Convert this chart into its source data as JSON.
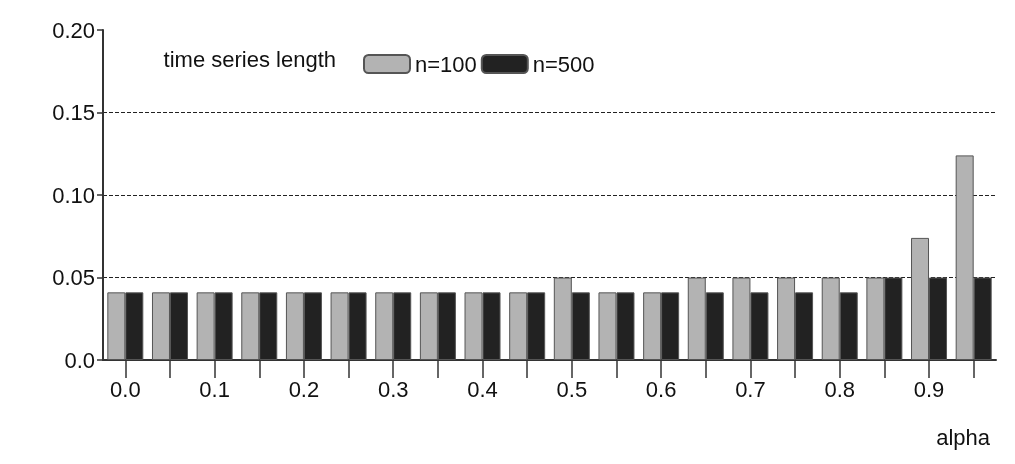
{
  "chart_data": {
    "type": "bar",
    "xlabel": "alpha",
    "legend_title": "time series length",
    "categories": [
      "0.0",
      null,
      "0.1",
      null,
      "0.2",
      null,
      "0.3",
      null,
      "0.4",
      null,
      "0.5",
      null,
      "0.6",
      null,
      "0.7",
      null,
      "0.8",
      null,
      "0.9",
      null
    ],
    "series": [
      {
        "name": "n=100",
        "color": "#b3b3b3",
        "values": [
          0.041,
          0.041,
          0.041,
          0.041,
          0.041,
          0.041,
          0.041,
          0.041,
          0.041,
          0.041,
          0.05,
          0.041,
          0.041,
          0.05,
          0.05,
          0.05,
          0.05,
          0.05,
          0.074,
          0.124
        ]
      },
      {
        "name": "n=500",
        "color": "#222222",
        "values": [
          0.041,
          0.041,
          0.041,
          0.041,
          0.041,
          0.041,
          0.041,
          0.041,
          0.041,
          0.041,
          0.041,
          0.041,
          0.041,
          0.041,
          0.041,
          0.041,
          0.041,
          0.05,
          0.05,
          0.05
        ]
      }
    ],
    "ylim": [
      0,
      0.2
    ],
    "yticks": [
      {
        "value": 0,
        "label": "0.0"
      },
      0.05,
      {
        "value": 0.1,
        "label": "0.10"
      },
      0.15,
      {
        "value": 0.2,
        "label": "0.20"
      }
    ],
    "grid": "y",
    "legend": "top"
  }
}
